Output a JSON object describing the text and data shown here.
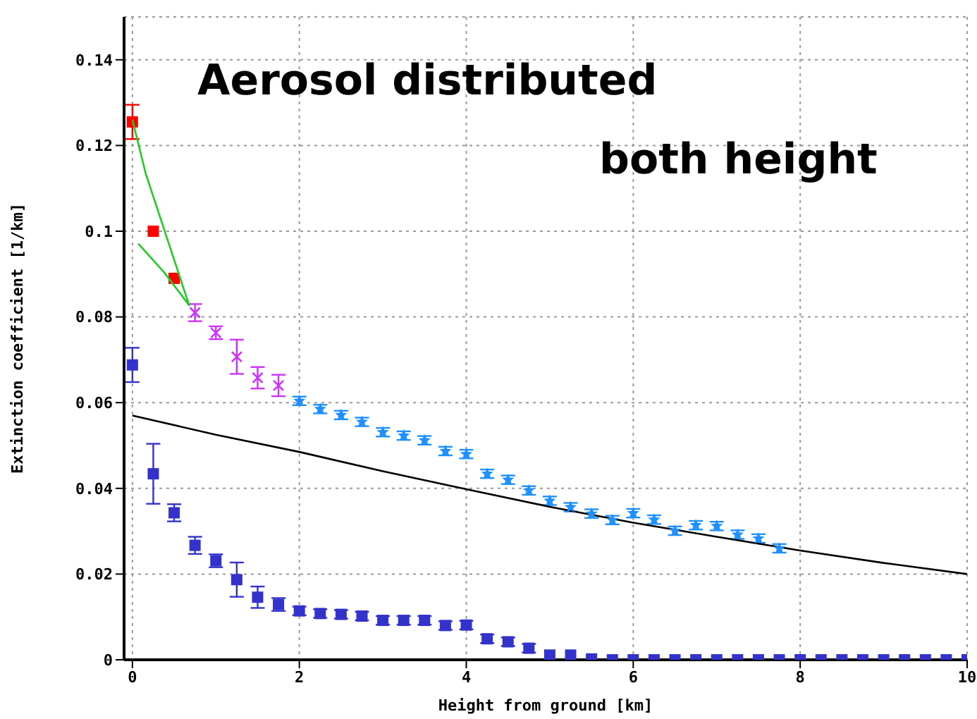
{
  "chart_data": {
    "type": "scatter",
    "xlabel": "Height from ground [km]",
    "ylabel": "Extinction coefficient [1/km]",
    "annotations": [
      "Aerosol distributed",
      "both height"
    ],
    "xlim": [
      -0.1,
      10
    ],
    "xticks": [
      0,
      2,
      4,
      6,
      8,
      10
    ],
    "ylim": [
      0,
      0.15
    ],
    "yticks": [
      0,
      0.02,
      0.04,
      0.06,
      0.08,
      0.1,
      0.12,
      0.14
    ],
    "grid": true,
    "series": [
      {
        "type": "line",
        "color": "#000000",
        "marker": "none",
        "x": [
          0,
          1,
          2,
          3,
          4,
          5,
          6,
          7,
          8,
          9,
          10
        ],
        "values": [
          0.057,
          0.0525,
          0.0485,
          0.044,
          0.0398,
          0.0357,
          0.032,
          0.0287,
          0.0255,
          0.0226,
          0.02
        ]
      },
      {
        "color": "#3333cc",
        "marker": "square",
        "x": [
          0,
          0.25,
          0.5,
          0.75,
          1,
          1.25,
          1.5,
          1.75,
          2,
          2.25,
          2.5,
          2.75,
          3,
          3.25,
          3.5,
          3.75,
          4,
          4.25,
          4.5,
          4.75,
          5,
          5.25,
          5.5,
          5.75,
          6,
          6.25,
          6.5,
          6.75,
          7,
          7.25,
          7.5,
          7.75,
          8,
          8.25,
          8.5,
          8.75,
          9,
          9.25,
          9.5,
          9.75,
          10
        ],
        "values": [
          0.0688,
          0.0434,
          0.0343,
          0.0267,
          0.0231,
          0.0187,
          0.0146,
          0.0129,
          0.0114,
          0.0108,
          0.0106,
          0.0102,
          0.0092,
          0.0092,
          0.0092,
          0.008,
          0.0081,
          0.0049,
          0.0042,
          0.0027,
          0.0011,
          0.0011,
          0.0002,
          0,
          0,
          0,
          0,
          0,
          0,
          0,
          0,
          0,
          0,
          0,
          0,
          0,
          0,
          0,
          0,
          0,
          0
        ],
        "errors": [
          0.004,
          0.007,
          0.002,
          0.002,
          0.0015,
          0.004,
          0.0025,
          0.0015,
          0.001,
          0.001,
          0.001,
          0.001,
          0.001,
          0.001,
          0.001,
          0.001,
          0.001,
          0.001,
          0.001,
          0.001,
          null,
          null,
          null,
          null,
          null,
          null,
          null,
          null,
          null,
          null,
          null,
          null,
          null,
          null,
          null,
          null,
          null,
          null,
          null,
          null,
          null
        ]
      },
      {
        "color": "#1e90ff",
        "marker": "star",
        "x": [
          2,
          2.25,
          2.5,
          2.75,
          3,
          3.25,
          3.5,
          3.75,
          4,
          4.25,
          4.5,
          4.75,
          5,
          5.25,
          5.5,
          5.75,
          6,
          6.25,
          6.5,
          6.75,
          7,
          7.25,
          7.5,
          7.75
        ],
        "values": [
          0.0604,
          0.0585,
          0.0571,
          0.0555,
          0.0531,
          0.0523,
          0.0512,
          0.0487,
          0.048,
          0.0434,
          0.042,
          0.0395,
          0.0371,
          0.0356,
          0.0341,
          0.0326,
          0.0342,
          0.0327,
          0.0301,
          0.0314,
          0.0312,
          0.0292,
          0.0283,
          0.026
        ],
        "errors": [
          0.001,
          0.001,
          0.001,
          0.001,
          0.001,
          0.001,
          0.001,
          0.001,
          0.001,
          0.001,
          0.001,
          0.001,
          0.001,
          0.001,
          0.001,
          0.001,
          0.001,
          0.001,
          0.001,
          0.001,
          0.001,
          0.001,
          0.001,
          0.001
        ]
      },
      {
        "color": "#cc33ff",
        "marker": "cross",
        "x": [
          0.75,
          1,
          1.25,
          1.5,
          1.75
        ],
        "values": [
          0.081,
          0.0763,
          0.0707,
          0.0658,
          0.064
        ],
        "errors": [
          0.002,
          0.0015,
          0.004,
          0.0025,
          0.0025
        ]
      },
      {
        "color": "#ff0000",
        "marker": "square",
        "x": [
          0,
          0.25,
          0.5
        ],
        "values": [
          0.1255,
          0.1,
          0.089
        ],
        "errors": [
          0.004,
          null,
          null
        ]
      },
      {
        "type": "line",
        "color": "#22cc22",
        "marker": "none",
        "x": [
          0,
          0.16,
          0.68,
          0.38,
          0.07
        ],
        "values": [
          0.126,
          0.1134,
          0.0827,
          0.0904,
          0.0971
        ]
      }
    ]
  }
}
